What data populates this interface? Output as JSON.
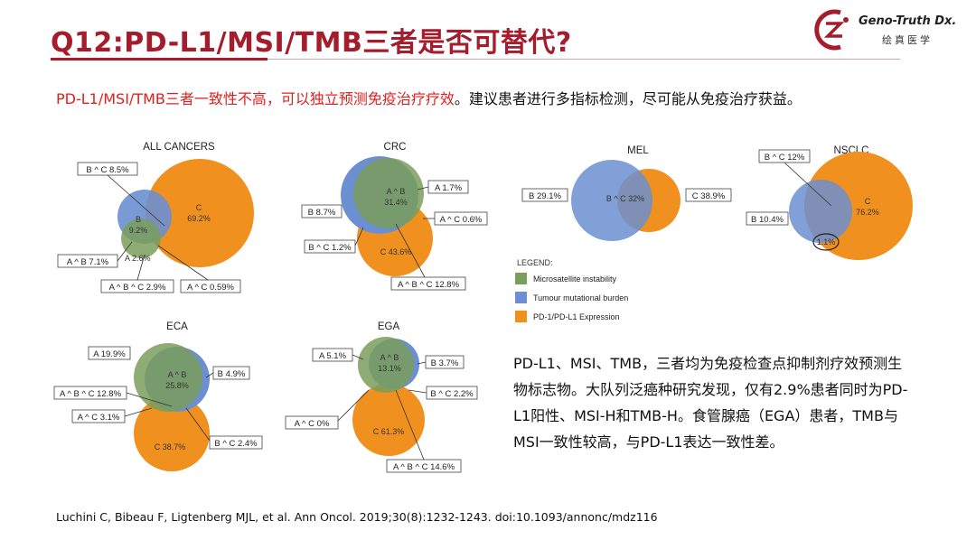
{
  "slide": {
    "title": "Q12:PD-L1/MSI/TMB三者是否可替代?",
    "subtitle_red": "PD-L1/MSI/TMB三者一致性不高，可以独立预测免疫治疗疗效",
    "subtitle_black": "。建议患者进行多指标检测，尽可能从免疫治疗获益。",
    "description": "PD-L1、MSI、TMB，三者均为免疫检查点抑制剂疗效预测生物标志物。大队列泛癌种研究发现，仅有2.9%患者同时为PD-L1阳性、MSI-H和TMB-H。食管腺癌（EGA）患者，TMB与MSI一致性较高，与PD-L1表达一致性差。",
    "reference": "Luchini C, Bibeau F, Ligtenberg MJL, et al. Ann Oncol. 2019;30(8):1232-1243. doi:10.1093/annonc/mdz116"
  },
  "logo": {
    "name_en": "Geno-Truth Dx.",
    "name_cn": "绘真医学",
    "colors": {
      "mark": "#a51d2d"
    }
  },
  "colors": {
    "msi": "#7a9e5c",
    "tmb": "#6b8fd0",
    "pdl1": "#f0901f",
    "title": "#a51d2d",
    "highlight": "#e0201f"
  },
  "chart_data": [
    {
      "type": "venn",
      "title": "ALL CANCERS",
      "sets": {
        "A": "Microsatellite instability",
        "B": "Tumour mutational burden",
        "C": "PD-1/PD-L1 Expression"
      },
      "regions": {
        "B": "9.2%",
        "C": "69.2%",
        "A": "2.6%"
      },
      "labels": [
        "B ^ C 8.5%",
        "A ^ B 7.1%",
        "A ^ B ^ C 2.9%",
        "A ^ C 0.59%"
      ]
    },
    {
      "type": "venn",
      "title": "CRC",
      "regions": {
        "A ^ B": "31.4%",
        "C": "43.6%"
      },
      "labels": [
        "A 1.7%",
        "B 8.7%",
        "A ^ C 0.6%",
        "B ^ C 1.2%",
        "A ^ B ^ C 12.8%"
      ]
    },
    {
      "type": "venn",
      "title": "MEL",
      "regions": {
        "B ^ C": "32%"
      },
      "labels": [
        "B 29.1%",
        "C 38.9%"
      ]
    },
    {
      "type": "venn",
      "title": "NSCLC",
      "regions": {
        "C": "76.2%",
        "A ^ B ^ C": "1.1%"
      },
      "labels": [
        "B ^ C 12%",
        "B 10.4%"
      ]
    },
    {
      "type": "venn",
      "title": "ECA",
      "regions": {
        "A ^ B": "25.8%",
        "C": "38.7%"
      },
      "labels": [
        "A 19.9%",
        "B 4.9%",
        "A ^ B ^ C 12.8%",
        "A ^ C 3.1%",
        "B ^ C 2.4%"
      ]
    },
    {
      "type": "venn",
      "title": "EGA",
      "regions": {
        "A ^ B": "13.1%",
        "C": "61.3%"
      },
      "labels": [
        "A 5.1%",
        "B 3.7%",
        "B ^ C 2.2%",
        "A ^ C 0%",
        "A ^ B ^ C 14.6%"
      ]
    }
  ],
  "legend": {
    "title": "LEGEND:",
    "items": [
      {
        "label": "Microsatellite instability",
        "color": "#7a9e5c"
      },
      {
        "label": "Tumour mutational burden",
        "color": "#6b8fd0"
      },
      {
        "label": "PD-1/PD-L1 Expression",
        "color": "#f0901f"
      }
    ]
  }
}
